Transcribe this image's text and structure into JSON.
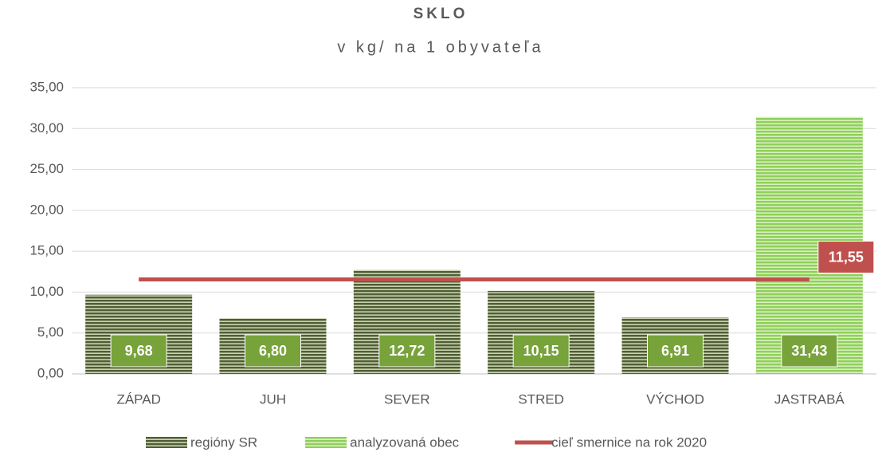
{
  "chart_data": {
    "type": "bar",
    "title": "SKLO",
    "subtitle": "v kg/ na 1 obyvateľa",
    "categories": [
      "ZÁPAD",
      "JUH",
      "SEVER",
      "STRED",
      "VÝCHOD",
      "JASTRABÁ"
    ],
    "series": [
      {
        "name": "regióny SR",
        "color": "#5b6b3c",
        "values": [
          9.68,
          6.8,
          12.72,
          10.15,
          6.91,
          null
        ],
        "value_labels": [
          "9,68",
          "6,80",
          "12,72",
          "10,15",
          "6,91",
          null
        ]
      },
      {
        "name": "analyzovaná obec",
        "color": "#9fd66e",
        "values": [
          null,
          null,
          null,
          null,
          null,
          31.43
        ],
        "value_labels": [
          null,
          null,
          null,
          null,
          null,
          "31,43"
        ]
      },
      {
        "name": "cieľ smernice na rok 2020",
        "type": "line",
        "color": "#c0504d",
        "values": [
          11.55,
          11.55,
          11.55,
          11.55,
          11.55,
          11.55
        ],
        "value_labels": [
          null,
          null,
          null,
          null,
          null,
          "11,55"
        ]
      }
    ],
    "ylim": [
      0,
      35
    ],
    "yticks": [
      {
        "value": 0,
        "label": "0,00"
      },
      {
        "value": 5,
        "label": "5,00"
      },
      {
        "value": 10,
        "label": "10,00"
      },
      {
        "value": 15,
        "label": "15,00"
      },
      {
        "value": 20,
        "label": "20,00"
      },
      {
        "value": 25,
        "label": "25,00"
      },
      {
        "value": 30,
        "label": "30,00"
      },
      {
        "value": 35,
        "label": "35,00"
      }
    ],
    "grid": true,
    "legend": "bottom"
  }
}
